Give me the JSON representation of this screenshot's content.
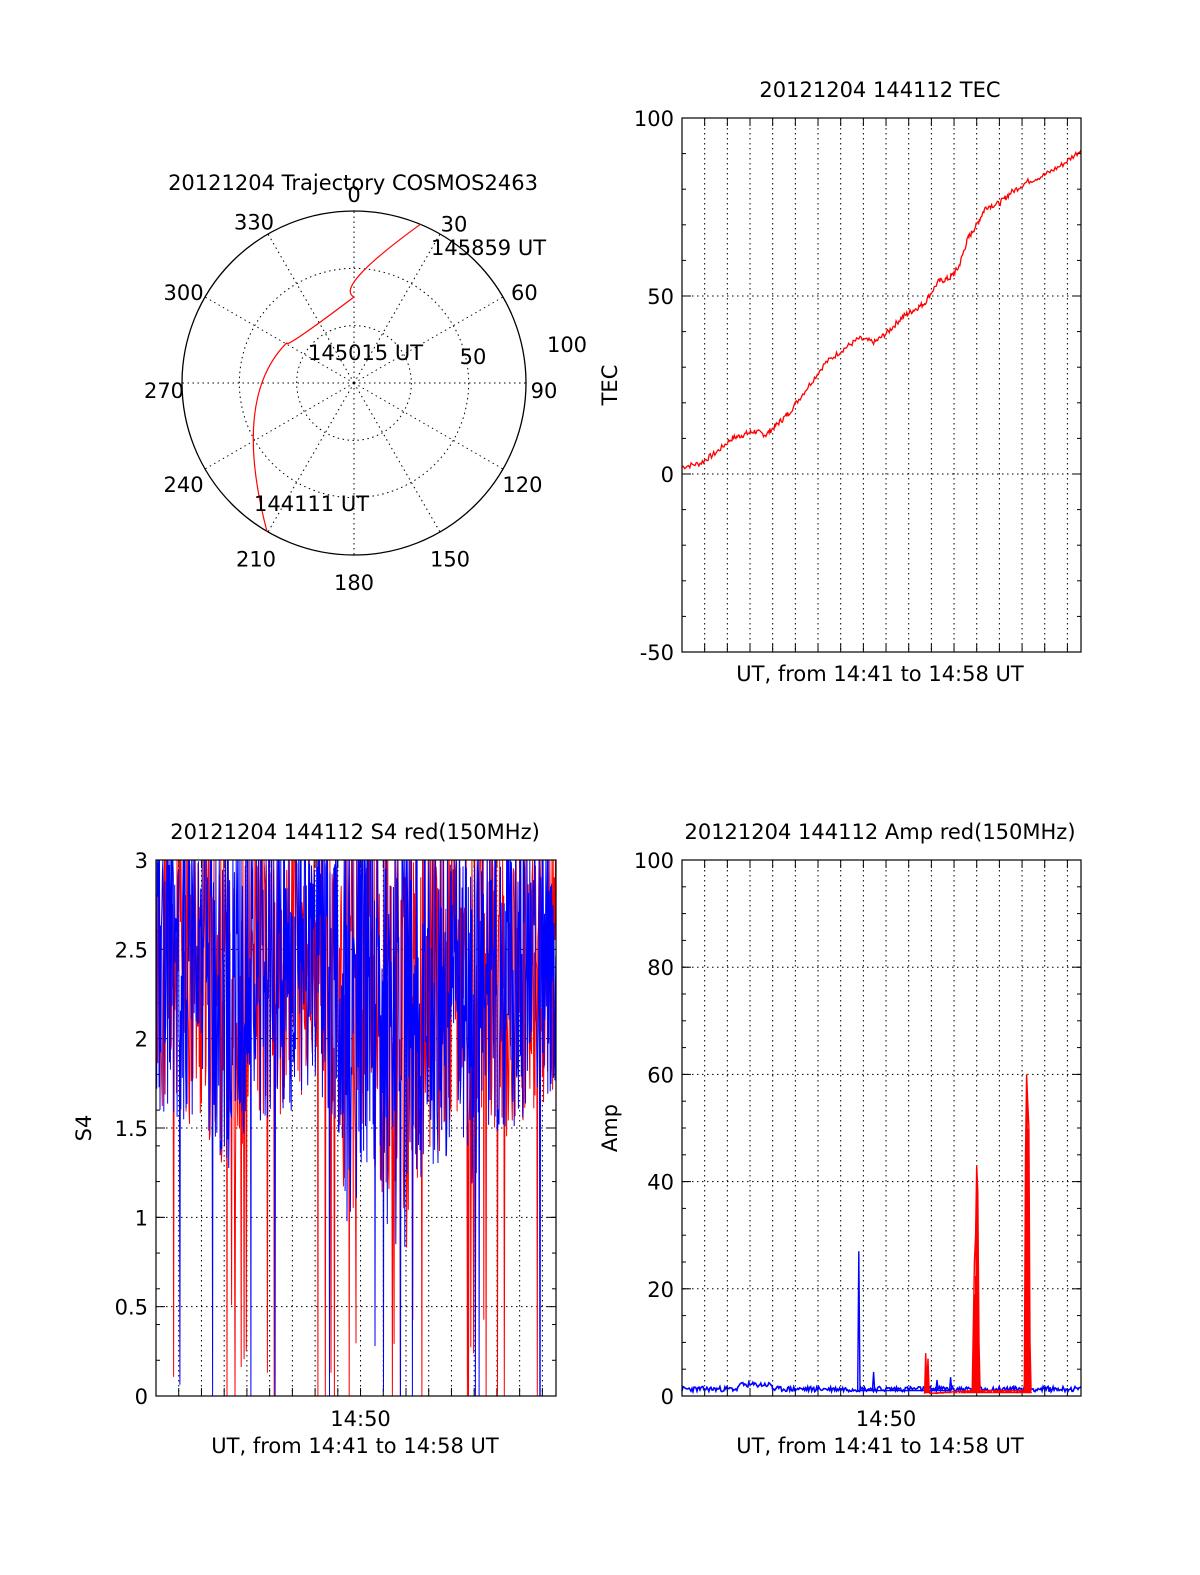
{
  "colors": {
    "red": "#ff0000",
    "blue": "#0000ff",
    "black": "#000000",
    "background": "#ffffff"
  },
  "chart_data": [
    {
      "id": "trajectory",
      "type": "polar",
      "title": "20121204 Trajectory COSMOS2463",
      "azimuth_labels": [
        "0",
        "30",
        "60",
        "90",
        "120",
        "150",
        "180",
        "210",
        "240",
        "270",
        "300",
        "330"
      ],
      "radial_labels": [
        "50",
        "100"
      ],
      "radial_max": 90,
      "track": {
        "points": [
          [
            22.7,
            90
          ],
          [
            0,
            45
          ],
          [
            -59,
            41
          ],
          [
            -149.6,
            90
          ]
        ],
        "labels": [
          {
            "text": "145859 UT",
            "az": 22.7,
            "r": 90
          },
          {
            "text": "145015 UT",
            "az": -59,
            "r": 41
          },
          {
            "text": "144111 UT",
            "az": -149.6,
            "r": 90
          }
        ]
      },
      "grid": true
    },
    {
      "id": "tec",
      "type": "line",
      "title": "20121204 144112 TEC",
      "ylabel": "TEC",
      "xlabel": "UT, from 14:41 to 14:58 UT",
      "ylim": [
        -50,
        100
      ],
      "yticks": [
        "100",
        "50",
        "0",
        "-50"
      ],
      "xlim": [
        0,
        17.6
      ],
      "grid": true,
      "series": [
        {
          "color": "red",
          "x": [
            0,
            0.8,
            1.5,
            2.2,
            2.7,
            3.2,
            3.7,
            4.2,
            4.7,
            5.5,
            6.3,
            7.1,
            7.8,
            8.5,
            9.1,
            9.7,
            10.2,
            10.7,
            11.3,
            11.8,
            12.2,
            12.6,
            13.0,
            13.4,
            14.0,
            14.5,
            15.2,
            16.0,
            16.8,
            17.6
          ],
          "y": [
            2,
            3,
            6,
            10,
            11,
            12,
            11,
            14,
            17,
            24,
            31,
            35,
            38,
            37,
            40,
            44,
            46,
            48,
            54,
            55,
            58,
            66,
            70,
            75,
            76,
            79,
            82,
            84,
            87,
            91
          ]
        }
      ]
    },
    {
      "id": "s4",
      "type": "line",
      "title": "20121204 144112 S4 red(150MHz)",
      "ylabel": "S4",
      "xlabel": "UT, from 14:41 to 14:58 UT",
      "ylim": [
        0,
        3
      ],
      "yticks": [
        "3",
        "2.5",
        "2",
        "1.5",
        "1",
        "0.5",
        "0"
      ],
      "xlim": [
        0,
        17.6
      ],
      "xtick_labels": [
        {
          "x": 9,
          "label": "14:50"
        }
      ],
      "grid": true,
      "series": [
        {
          "color": "red",
          "x": [],
          "y": []
        },
        {
          "color": "blue",
          "x": [],
          "y": []
        }
      ]
    },
    {
      "id": "amp",
      "type": "line",
      "title": "20121204 144112 Amp red(150MHz)",
      "ylabel": "Amp",
      "xlabel": "UT, from 14:41 to 14:58 UT",
      "ylim": [
        0,
        100
      ],
      "yticks": [
        "100",
        "80",
        "60",
        "40",
        "20",
        "0"
      ],
      "xlim": [
        0,
        17.6
      ],
      "xtick_labels": [
        {
          "x": 9,
          "label": "14:50"
        }
      ],
      "grid": true,
      "series": [
        {
          "color": "red",
          "x": [
            10.7,
            10.75,
            10.8,
            10.85,
            10.9,
            10.95,
            12.8,
            12.9,
            12.95,
            13.0,
            13.05,
            13.1,
            13.15,
            15.1,
            15.15,
            15.2,
            15.25,
            15.3,
            15.35,
            15.4
          ],
          "y": [
            0.5,
            8,
            2,
            7,
            1,
            0.5,
            1,
            25,
            30,
            43,
            38,
            10,
            1,
            1,
            45,
            60,
            55,
            50,
            10,
            1
          ]
        },
        {
          "color": "blue",
          "x": [
            7.75,
            7.8,
            7.85,
            8.4,
            8.45,
            8.5,
            11.2,
            11.25,
            11.3,
            11.8,
            11.85,
            11.9
          ],
          "y": [
            1,
            27,
            1,
            1,
            4.5,
            1,
            1,
            3,
            1,
            1,
            3.5,
            1
          ]
        }
      ]
    }
  ]
}
